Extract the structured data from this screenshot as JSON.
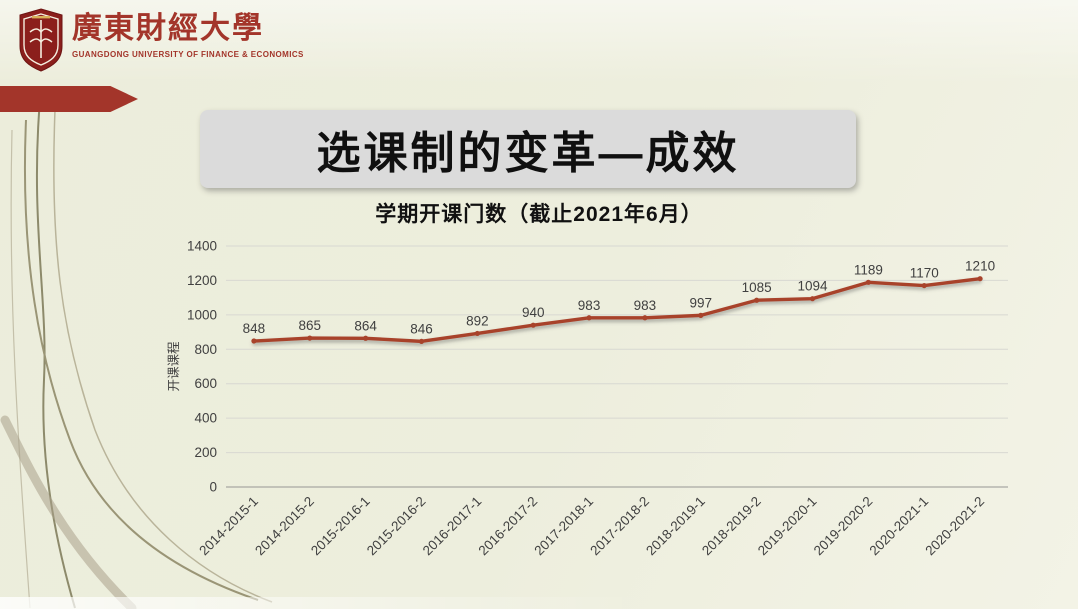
{
  "logo": {
    "name_cn": "廣東財經大學",
    "name_en": "GUANGDONG UNIVERSITY OF FINANCE & ECONOMICS"
  },
  "slide": {
    "title": "选课制的变革—成效"
  },
  "chart_data": {
    "type": "line",
    "title": "学期开课门数（截止2021年6月）",
    "xlabel": "",
    "ylabel": "开课课程",
    "categories": [
      "2014-2015-1",
      "2014-2015-2",
      "2015-2016-1",
      "2015-2016-2",
      "2016-2017-1",
      "2016-2017-2",
      "2017-2018-1",
      "2017-2018-2",
      "2018-2019-1",
      "2018-2019-2",
      "2019-2020-1",
      "2019-2020-2",
      "2020-2021-1",
      "2020-2021-2"
    ],
    "values": [
      848,
      865,
      864,
      846,
      892,
      940,
      983,
      983,
      997,
      1085,
      1094,
      1189,
      1170,
      1210
    ],
    "ylim": [
      0,
      1400
    ],
    "yticks": [
      0,
      200,
      400,
      600,
      800,
      1000,
      1200,
      1400
    ],
    "grid": true,
    "legend": "none",
    "line_color": "#a8432b",
    "label_color": "#404040"
  },
  "colors": {
    "slide_bg": "#edeedd",
    "accent_red": "#a3352a",
    "title_panel_bg": "#dbdbdb",
    "text_dark": "#404040"
  }
}
